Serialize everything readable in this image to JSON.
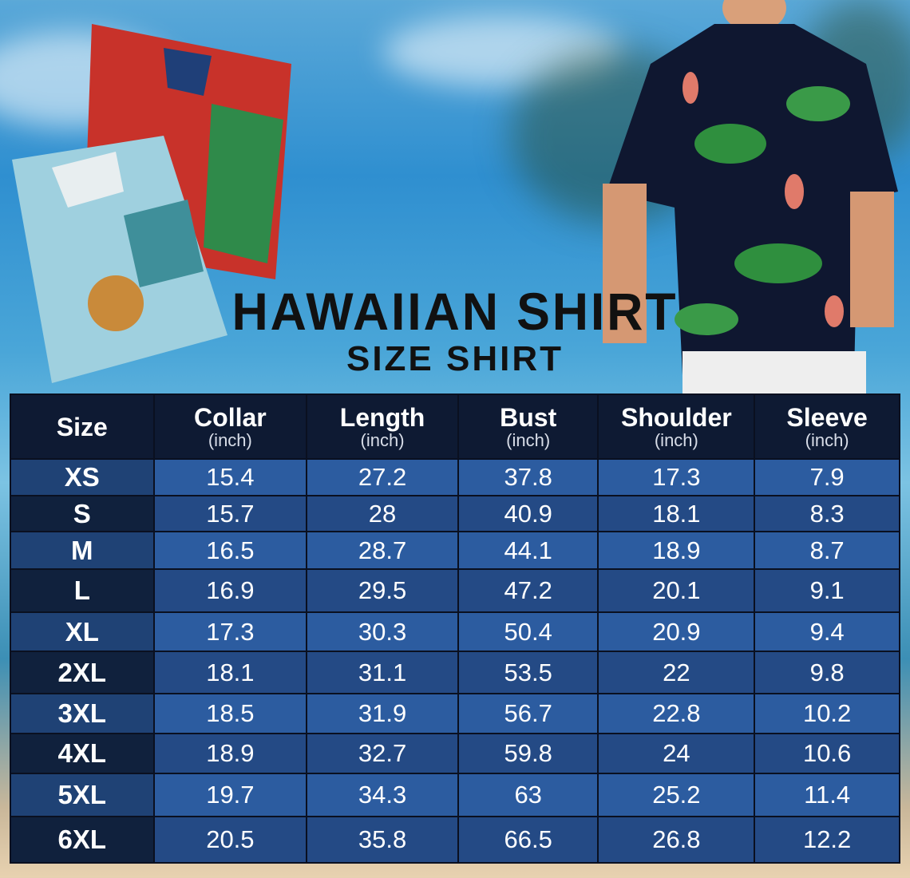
{
  "title": "HAWAIIAN SHIRT",
  "subtitle": "SIZE SHIRT",
  "colors": {
    "header": "#0e1a33",
    "row_light": "#2c5ca0",
    "row_dark": "#244a85"
  },
  "chart_data": {
    "type": "table",
    "columns": [
      {
        "label": "Size",
        "unit": ""
      },
      {
        "label": "Collar",
        "unit": "(inch)"
      },
      {
        "label": "Length",
        "unit": "(inch)"
      },
      {
        "label": "Bust",
        "unit": "(inch)"
      },
      {
        "label": "Shoulder",
        "unit": "(inch)"
      },
      {
        "label": "Sleeve",
        "unit": "(inch)"
      }
    ],
    "rows": [
      [
        "XS",
        "15.4",
        "27.2",
        "37.8",
        "17.3",
        "7.9"
      ],
      [
        "S",
        "15.7",
        "28",
        "40.9",
        "18.1",
        "8.3"
      ],
      [
        "M",
        "16.5",
        "28.7",
        "44.1",
        "18.9",
        "8.7"
      ],
      [
        "L",
        "16.9",
        "29.5",
        "47.2",
        "20.1",
        "9.1"
      ],
      [
        "XL",
        "17.3",
        "30.3",
        "50.4",
        "20.9",
        "9.4"
      ],
      [
        "2XL",
        "18.1",
        "31.1",
        "53.5",
        "22",
        "9.8"
      ],
      [
        "3XL",
        "18.5",
        "31.9",
        "56.7",
        "22.8",
        "10.2"
      ],
      [
        "4XL",
        "18.9",
        "32.7",
        "59.8",
        "24",
        "10.6"
      ],
      [
        "5XL",
        "19.7",
        "34.3",
        "63",
        "25.2",
        "11.4"
      ],
      [
        "6XL",
        "20.5",
        "35.8",
        "66.5",
        "26.8",
        "12.2"
      ]
    ]
  }
}
